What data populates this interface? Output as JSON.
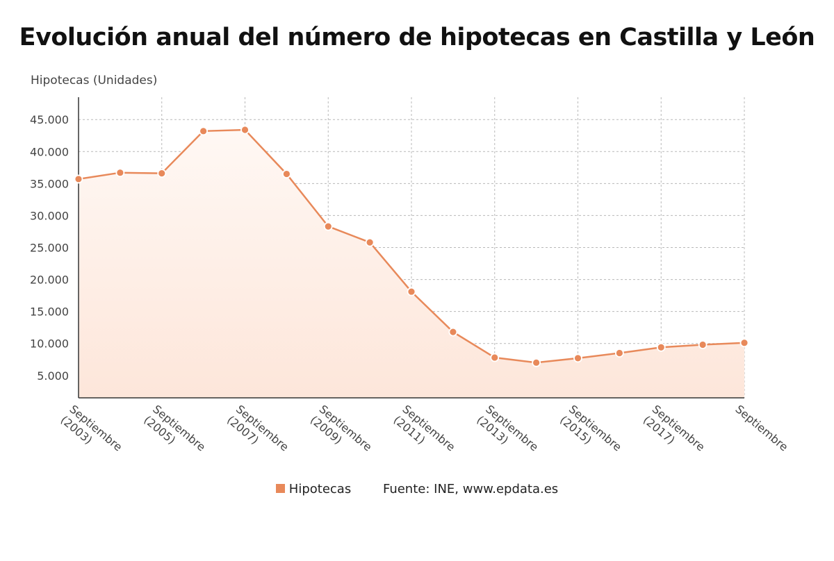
{
  "colors": {
    "line": "#e8895a",
    "area_top": "#fff8f4",
    "area_bottom": "#fde6da",
    "grid": "#b8b8b8"
  },
  "chart_data": {
    "type": "area",
    "title": "Evolución anual del número de hipotecas en Castilla y León",
    "ylabel": "Hipotecas (Unidades)",
    "xlabel": "",
    "ylim": [
      1500,
      48500
    ],
    "yticks": [
      5000,
      10000,
      15000,
      20000,
      25000,
      30000,
      35000,
      40000,
      45000
    ],
    "ytick_labels": [
      "5.000",
      "10.000",
      "15.000",
      "20.000",
      "25.000",
      "30.000",
      "35.000",
      "40.000",
      "45.000"
    ],
    "xtick_labels": [
      "Septiembre (2003)",
      "Septiembre (2005)",
      "Septiembre (2007)",
      "Septiembre (2009)",
      "Septiembre (2011)",
      "Septiembre (2013)",
      "Septiembre (2015)",
      "Septiembre (2017)",
      "Septiembre"
    ],
    "grid": true,
    "legend_position": "bottom",
    "series": [
      {
        "name": "Hipotecas",
        "x": [
          2003,
          2004,
          2005,
          2006,
          2007,
          2008,
          2009,
          2010,
          2011,
          2012,
          2013,
          2014,
          2015,
          2016,
          2017,
          2018,
          2019
        ],
        "values": [
          35700,
          36700,
          36600,
          43200,
          43400,
          36500,
          28300,
          25800,
          18100,
          11800,
          7800,
          7000,
          7700,
          8500,
          9400,
          9800,
          10100
        ]
      }
    ]
  },
  "legend": {
    "series_label": "Hipotecas",
    "source": "Fuente: INE, www.epdata.es"
  }
}
